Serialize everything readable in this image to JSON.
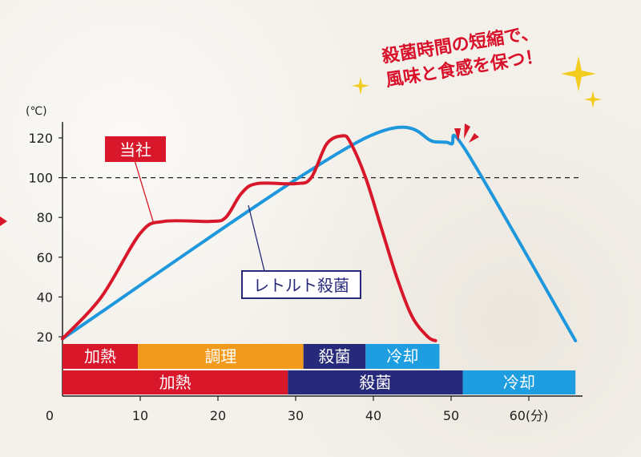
{
  "chart_data": {
    "type": "line",
    "yunit": "(℃)",
    "xunit": "(分)",
    "xlim": [
      0,
      67
    ],
    "ylim": [
      0,
      128
    ],
    "xticks": [
      0,
      10,
      20,
      30,
      40,
      50,
      60
    ],
    "yticks": [
      20,
      40,
      60,
      80,
      100,
      120
    ],
    "reference_line": 100,
    "series": [
      {
        "name": "当社",
        "color": "#d8182a",
        "points": [
          [
            0,
            19
          ],
          [
            5,
            40
          ],
          [
            10,
            72
          ],
          [
            13,
            78
          ],
          [
            19,
            78
          ],
          [
            21,
            80
          ],
          [
            23,
            92
          ],
          [
            25,
            97
          ],
          [
            30,
            97
          ],
          [
            32,
            100
          ],
          [
            34,
            117
          ],
          [
            36,
            121
          ],
          [
            37,
            118
          ],
          [
            39,
            100
          ],
          [
            41,
            75
          ],
          [
            43,
            50
          ],
          [
            45,
            30
          ],
          [
            47,
            20
          ],
          [
            48,
            18
          ]
        ]
      },
      {
        "name": "レトルト殺菌",
        "color": "#1e97dc",
        "points": [
          [
            0,
            19
          ],
          [
            38,
            118
          ],
          [
            48,
            118
          ],
          [
            50,
            117
          ],
          [
            52,
            113
          ],
          [
            66,
            18
          ]
        ]
      }
    ],
    "bands": [
      {
        "row": 1,
        "segments": [
          {
            "label": "加熱",
            "start": 0,
            "end": 9.7,
            "color": "#d8182a"
          },
          {
            "label": "調理",
            "start": 9.7,
            "end": 31,
            "color": "#f29a1b"
          },
          {
            "label": "殺菌",
            "start": 31,
            "end": 39,
            "color": "#272a7a"
          },
          {
            "label": "冷却",
            "start": 39,
            "end": 48.5,
            "color": "#1e9ee0"
          }
        ]
      },
      {
        "row": 2,
        "segments": [
          {
            "label": "加熱",
            "start": 0,
            "end": 29,
            "color": "#d8182a"
          },
          {
            "label": "殺菌",
            "start": 29,
            "end": 51.5,
            "color": "#272a7a"
          },
          {
            "label": "冷却",
            "start": 51.5,
            "end": 66,
            "color": "#1e9ee0"
          }
        ]
      }
    ],
    "callout_labels": [
      {
        "text": "当社",
        "series": "当社"
      },
      {
        "text": "レトルト殺菌",
        "series": "レトルト殺菌"
      }
    ],
    "annotation": {
      "lines": [
        "殺菌時間の短縮で、",
        "風味と食感を保つ！"
      ]
    }
  }
}
